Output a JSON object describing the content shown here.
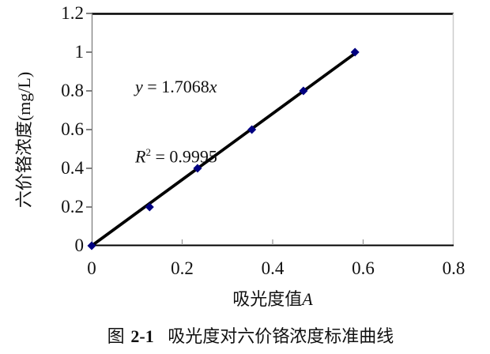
{
  "figure": {
    "caption_prefix": "图",
    "caption_number": "2-1",
    "caption_title": "吸光度对六价铬浓度标准曲线"
  },
  "annotation": {
    "eq_var_y": "y",
    "eq_equals": " = ",
    "eq_slope_text": "1.7068",
    "eq_var_x": "x",
    "r_var": "R",
    "r_sup": "2",
    "r_equals": " = ",
    "r_value": "0.9995"
  },
  "chart_data": {
    "type": "scatter",
    "xlabel_text": "吸光度值",
    "xlabel_var": "A",
    "ylabel": "六价铬浓度(mg/L)",
    "xlim": [
      0,
      0.8
    ],
    "ylim": [
      0,
      1.2
    ],
    "x_ticks": {
      "values": [
        0,
        0.2,
        0.4,
        0.6,
        0.8
      ],
      "labels": [
        "0",
        "0.2",
        "0.4",
        "0.6",
        "0.8"
      ]
    },
    "y_ticks": {
      "values": [
        0,
        0.2,
        0.4,
        0.6,
        0.8,
        1,
        1.2
      ],
      "labels": [
        "0",
        "0.2",
        "0.4",
        "0.6",
        "0.8",
        "1",
        "1.2"
      ]
    },
    "grid": false,
    "legend": "none",
    "series": [
      {
        "marker": "diamond",
        "marker_color": "#000080",
        "x": [
          0,
          0.128,
          0.234,
          0.354,
          0.468,
          0.582
        ],
        "y": [
          0,
          0.2,
          0.4,
          0.6,
          0.8,
          1.0
        ]
      }
    ],
    "trendline": {
      "type": "linear",
      "slope": 1.7068,
      "intercept": 0,
      "r_squared": 0.9995,
      "equation": "y = 1.7068x",
      "color": "#000000",
      "x_range": [
        0,
        0.582
      ]
    },
    "axis_colors": {
      "top_border": "#000000",
      "right_border": "#cccccc",
      "left_axis": "#808080",
      "bottom_axis": "#000000",
      "tick_color": "#555555"
    }
  }
}
